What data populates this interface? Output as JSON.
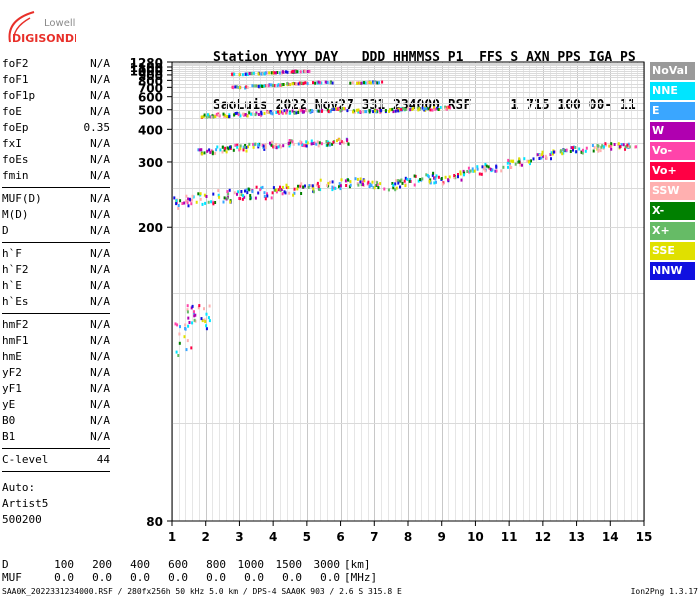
{
  "logo": {
    "line1": "Lowell",
    "line2": "DIGISONDE",
    "color": "#e8302a"
  },
  "header": {
    "row1": "Station YYYY DAY   DDD HHMMSS P1  FFS S AXN PPS IGA PS",
    "row2": "SaoLuis 2022 Nov27 331 234000 RSF     1 715 100 00- 11"
  },
  "params": {
    "group1": [
      {
        "name": "foF2",
        "value": "N/A"
      },
      {
        "name": "foF1",
        "value": "N/A"
      },
      {
        "name": "foF1p",
        "value": "N/A"
      },
      {
        "name": "foE",
        "value": "N/A"
      },
      {
        "name": "foEp",
        "value": "0.35"
      },
      {
        "name": "fxI",
        "value": "N/A"
      },
      {
        "name": "foEs",
        "value": "N/A"
      },
      {
        "name": "fmin",
        "value": "N/A"
      }
    ],
    "group2": [
      {
        "name": "MUF(D)",
        "value": "N/A"
      },
      {
        "name": "M(D)",
        "value": "N/A"
      },
      {
        "name": "D",
        "value": "N/A"
      }
    ],
    "group3": [
      {
        "name": "h`F",
        "value": "N/A"
      },
      {
        "name": "h`F2",
        "value": "N/A"
      },
      {
        "name": "h`E",
        "value": "N/A"
      },
      {
        "name": "h`Es",
        "value": "N/A"
      }
    ],
    "group4": [
      {
        "name": "hmF2",
        "value": "N/A"
      },
      {
        "name": "hmF1",
        "value": "N/A"
      },
      {
        "name": "hmE",
        "value": "N/A"
      },
      {
        "name": "yF2",
        "value": "N/A"
      },
      {
        "name": "yF1",
        "value": "N/A"
      },
      {
        "name": "yE",
        "value": "N/A"
      },
      {
        "name": "B0",
        "value": "N/A"
      },
      {
        "name": "B1",
        "value": "N/A"
      }
    ],
    "group5": [
      {
        "name": "C-level",
        "value": "44"
      }
    ]
  },
  "auto": {
    "line1": "Auto:",
    "line2": "Artist5",
    "line3": "500200"
  },
  "legend": [
    {
      "label": "NoVal",
      "color": "#9a9a9a"
    },
    {
      "label": "NNE",
      "color": "#00e5ff"
    },
    {
      "label": "E",
      "color": "#3aa6ff"
    },
    {
      "label": "W",
      "color": "#b000b0"
    },
    {
      "label": "Vo-",
      "color": "#ff44aa"
    },
    {
      "label": "Vo+",
      "color": "#ff0044"
    },
    {
      "label": "SSW",
      "color": "#ffb0b0"
    },
    {
      "label": "X-",
      "color": "#008000"
    },
    {
      "label": "X+",
      "color": "#66bb66"
    },
    {
      "label": "SSE",
      "color": "#e0e000"
    },
    {
      "label": "NNW",
      "color": "#1010e0"
    }
  ],
  "dtable": {
    "d_label": "D",
    "d_values": [
      "100",
      "200",
      "400",
      "600",
      "800",
      "1000",
      "1500",
      "3000"
    ],
    "d_unit": "[km]",
    "muf_label": "MUF",
    "muf_values": [
      "0.0",
      "0.0",
      "0.0",
      "0.0",
      "0.0",
      "0.0",
      "0.0",
      "0.0"
    ],
    "muf_unit": "[MHz]"
  },
  "footer": {
    "left": "SAA0K_2022331234000.RSF / 280fx256h 50 kHz 5.0 km / DPS-4 SAA0K 903 / 2.6 S 315.8 E",
    "right": "Ion2Png 1.3.17"
  },
  "chart_data": {
    "type": "scatter",
    "title": "",
    "xlabel": "",
    "ylabel": "",
    "xlim": [
      1,
      15
    ],
    "ylim": [
      80,
      1280
    ],
    "y_scale": "reciprocal",
    "grid": true,
    "x_ticks": [
      "1",
      "2",
      "3",
      "4",
      "5",
      "6",
      "7",
      "8",
      "9",
      "10",
      "11",
      "12",
      "13",
      "14",
      "15"
    ],
    "y_ticks": [
      "80",
      "200",
      "300",
      "400",
      "500",
      "600",
      "700",
      "800",
      "900",
      "1000",
      "1100",
      "1280"
    ],
    "series": [
      {
        "points": [
          [
            1.0,
            230
          ],
          [
            1.5,
            232
          ],
          [
            2.0,
            236
          ],
          [
            2.5,
            240
          ],
          [
            3.0,
            242
          ],
          [
            3.5,
            245
          ],
          [
            4.0,
            245
          ],
          [
            4.5,
            250
          ],
          [
            5.0,
            252
          ],
          [
            5.5,
            258
          ],
          [
            6.0,
            260
          ],
          [
            6.5,
            262
          ],
          [
            7.0,
            260
          ],
          [
            7.5,
            258
          ],
          [
            8.0,
            265
          ],
          [
            8.5,
            270
          ],
          [
            9.0,
            268
          ],
          [
            9.5,
            275
          ],
          [
            10.0,
            285
          ],
          [
            10.5,
            290
          ],
          [
            11.0,
            300
          ],
          [
            11.5,
            305
          ],
          [
            12.0,
            320
          ],
          [
            12.5,
            330
          ],
          [
            13.0,
            335
          ],
          [
            13.5,
            340
          ],
          [
            14.0,
            345
          ],
          [
            14.5,
            345
          ]
        ]
      },
      {
        "points": [
          [
            2.0,
            470
          ],
          [
            2.5,
            475
          ],
          [
            3.0,
            480
          ],
          [
            3.5,
            485
          ],
          [
            4.0,
            490
          ],
          [
            4.5,
            495
          ],
          [
            5.0,
            500
          ],
          [
            5.5,
            505
          ],
          [
            6.0,
            510
          ],
          [
            6.5,
            500
          ],
          [
            7.0,
            500
          ],
          [
            7.5,
            505
          ],
          [
            8.0,
            510
          ],
          [
            8.5,
            515
          ],
          [
            9.0,
            520
          ]
        ]
      },
      {
        "points": [
          [
            3.0,
            720
          ],
          [
            3.5,
            735
          ],
          [
            4.0,
            750
          ],
          [
            4.5,
            765
          ],
          [
            5.0,
            780
          ],
          [
            5.5,
            790
          ],
          [
            6.5,
            780
          ],
          [
            7.0,
            790
          ]
        ]
      },
      {
        "points": [
          [
            1.3,
            130
          ],
          [
            1.6,
            135
          ],
          [
            1.9,
            140
          ]
        ]
      },
      {
        "points": [
          [
            2.0,
            330
          ],
          [
            2.5,
            335
          ],
          [
            3.0,
            340
          ],
          [
            3.5,
            345
          ],
          [
            4.0,
            350
          ],
          [
            4.5,
            355
          ],
          [
            5.0,
            355
          ],
          [
            5.5,
            355
          ],
          [
            6.0,
            360
          ]
        ]
      },
      {
        "points": [
          [
            3.0,
            945
          ],
          [
            3.5,
            960
          ],
          [
            4.0,
            980
          ],
          [
            4.5,
            1000
          ],
          [
            4.8,
            1015
          ]
        ]
      }
    ]
  }
}
